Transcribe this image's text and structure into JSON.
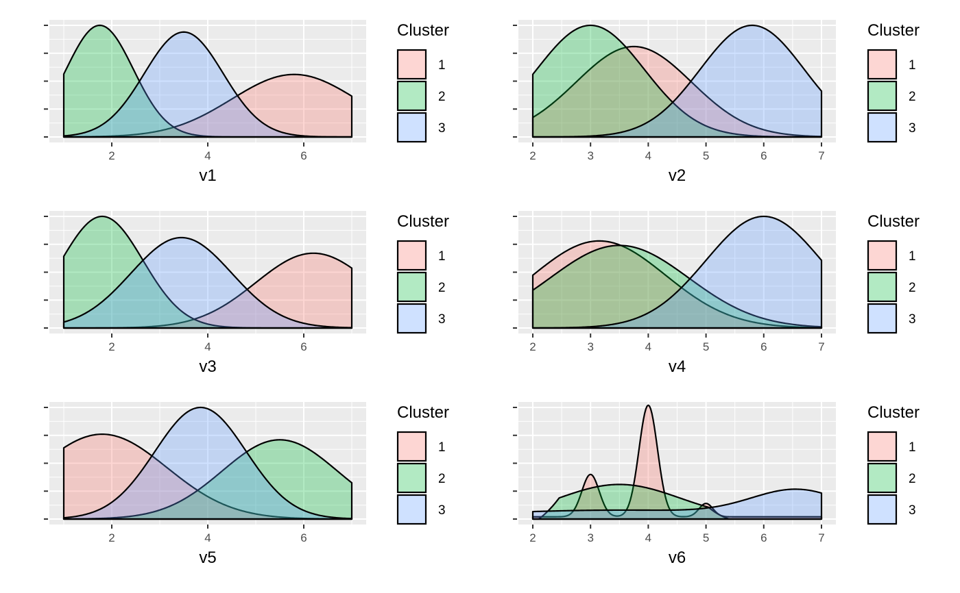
{
  "legend": {
    "title": "Cluster",
    "labels": [
      "1",
      "2",
      "3"
    ],
    "colors": [
      "#f8766d",
      "#00ba38",
      "#619cff"
    ]
  },
  "chart_data": [
    {
      "type": "area",
      "title": "",
      "xlabel": "v1",
      "ylabel": "",
      "xlim": [
        1,
        7
      ],
      "ylim": [
        0,
        1
      ],
      "x_ticks": [
        2,
        4,
        6
      ],
      "grid": true,
      "legend_position": "right",
      "series": [
        {
          "name": "1",
          "curve": "gaussian",
          "mu": 5.8,
          "sigma": 1.3,
          "peak": 0.56
        },
        {
          "name": "2",
          "curve": "gaussian",
          "mu": 1.75,
          "sigma": 0.7,
          "peak": 1.0
        },
        {
          "name": "3",
          "curve": "gaussian",
          "mu": 3.5,
          "sigma": 0.82,
          "peak": 0.94
        }
      ]
    },
    {
      "type": "area",
      "title": "",
      "xlabel": "v2",
      "ylabel": "",
      "xlim": [
        2,
        7
      ],
      "ylim": [
        0,
        1
      ],
      "x_ticks": [
        2,
        3,
        4,
        5,
        6,
        7
      ],
      "grid": true,
      "legend_position": "right",
      "series": [
        {
          "name": "1",
          "curve": "gaussian",
          "mu": 3.75,
          "sigma": 1.0,
          "peak": 0.81
        },
        {
          "name": "2",
          "curve": "gaussian",
          "mu": 3.0,
          "sigma": 0.93,
          "peak": 1.0
        },
        {
          "name": "3",
          "curve": "gaussian",
          "mu": 5.8,
          "sigma": 0.9,
          "peak": 1.0
        }
      ]
    },
    {
      "type": "area",
      "title": "",
      "xlabel": "v3",
      "ylabel": "",
      "xlim": [
        1,
        7
      ],
      "ylim": [
        0,
        1
      ],
      "x_ticks": [
        2,
        4,
        6
      ],
      "grid": true,
      "legend_position": "right",
      "series": [
        {
          "name": "1",
          "curve": "gaussian",
          "mu": 6.2,
          "sigma": 1.2,
          "peak": 0.67
        },
        {
          "name": "2",
          "curve": "gaussian",
          "mu": 1.8,
          "sigma": 0.85,
          "peak": 1.0
        },
        {
          "name": "3",
          "curve": "gaussian",
          "mu": 3.45,
          "sigma": 1.05,
          "peak": 0.81
        }
      ]
    },
    {
      "type": "area",
      "title": "",
      "xlabel": "v4",
      "ylabel": "",
      "xlim": [
        2,
        7
      ],
      "ylim": [
        0,
        1
      ],
      "x_ticks": [
        2,
        3,
        4,
        5,
        6,
        7
      ],
      "grid": true,
      "legend_position": "right",
      "series": [
        {
          "name": "1",
          "curve": "gaussian",
          "mu": 3.15,
          "sigma": 1.15,
          "peak": 0.78
        },
        {
          "name": "2",
          "curve": "gaussian",
          "mu": 3.5,
          "sigma": 1.2,
          "peak": 0.74
        },
        {
          "name": "3",
          "curve": "gaussian",
          "mu": 6.0,
          "sigma": 1.0,
          "peak": 1.0
        }
      ]
    },
    {
      "type": "area",
      "title": "",
      "xlabel": "v5",
      "ylabel": "",
      "xlim": [
        1,
        7
      ],
      "ylim": [
        0,
        1
      ],
      "x_ticks": [
        2,
        4,
        6
      ],
      "grid": true,
      "legend_position": "right",
      "series": [
        {
          "name": "1",
          "curve": "gaussian",
          "mu": 1.8,
          "sigma": 1.35,
          "peak": 0.76
        },
        {
          "name": "2",
          "curve": "gaussian",
          "mu": 5.5,
          "sigma": 1.2,
          "peak": 0.71
        },
        {
          "name": "3",
          "curve": "gaussian",
          "mu": 3.85,
          "sigma": 0.95,
          "peak": 1.0
        }
      ]
    },
    {
      "type": "area",
      "title": "",
      "xlabel": "v6",
      "ylabel": "",
      "xlim": [
        2,
        7
      ],
      "ylim": [
        0,
        1
      ],
      "x_ticks": [
        2,
        3,
        4,
        5,
        6,
        7
      ],
      "grid": true,
      "legend_position": "right",
      "series": [
        {
          "name": "1",
          "curve": "mixture",
          "floor": 0.02,
          "components": [
            {
              "mu": 3.0,
              "sigma": 0.15,
              "peak": 0.38
            },
            {
              "mu": 4.0,
              "sigma": 0.16,
              "peak": 1.0
            },
            {
              "mu": 5.0,
              "sigma": 0.12,
              "peak": 0.12
            }
          ]
        },
        {
          "name": "2",
          "curve": "bump",
          "mu": 3.5,
          "sigma": 1.05,
          "peak": 0.31,
          "range": [
            2.1,
            5.4
          ]
        },
        {
          "name": "3",
          "curve": "mixture",
          "floor": 0.0,
          "components": [
            {
              "mu": 6.6,
              "sigma": 0.8,
              "peak": 0.23
            },
            {
              "mu": 3.5,
              "sigma": 2.5,
              "peak": 0.08
            }
          ]
        }
      ]
    }
  ]
}
